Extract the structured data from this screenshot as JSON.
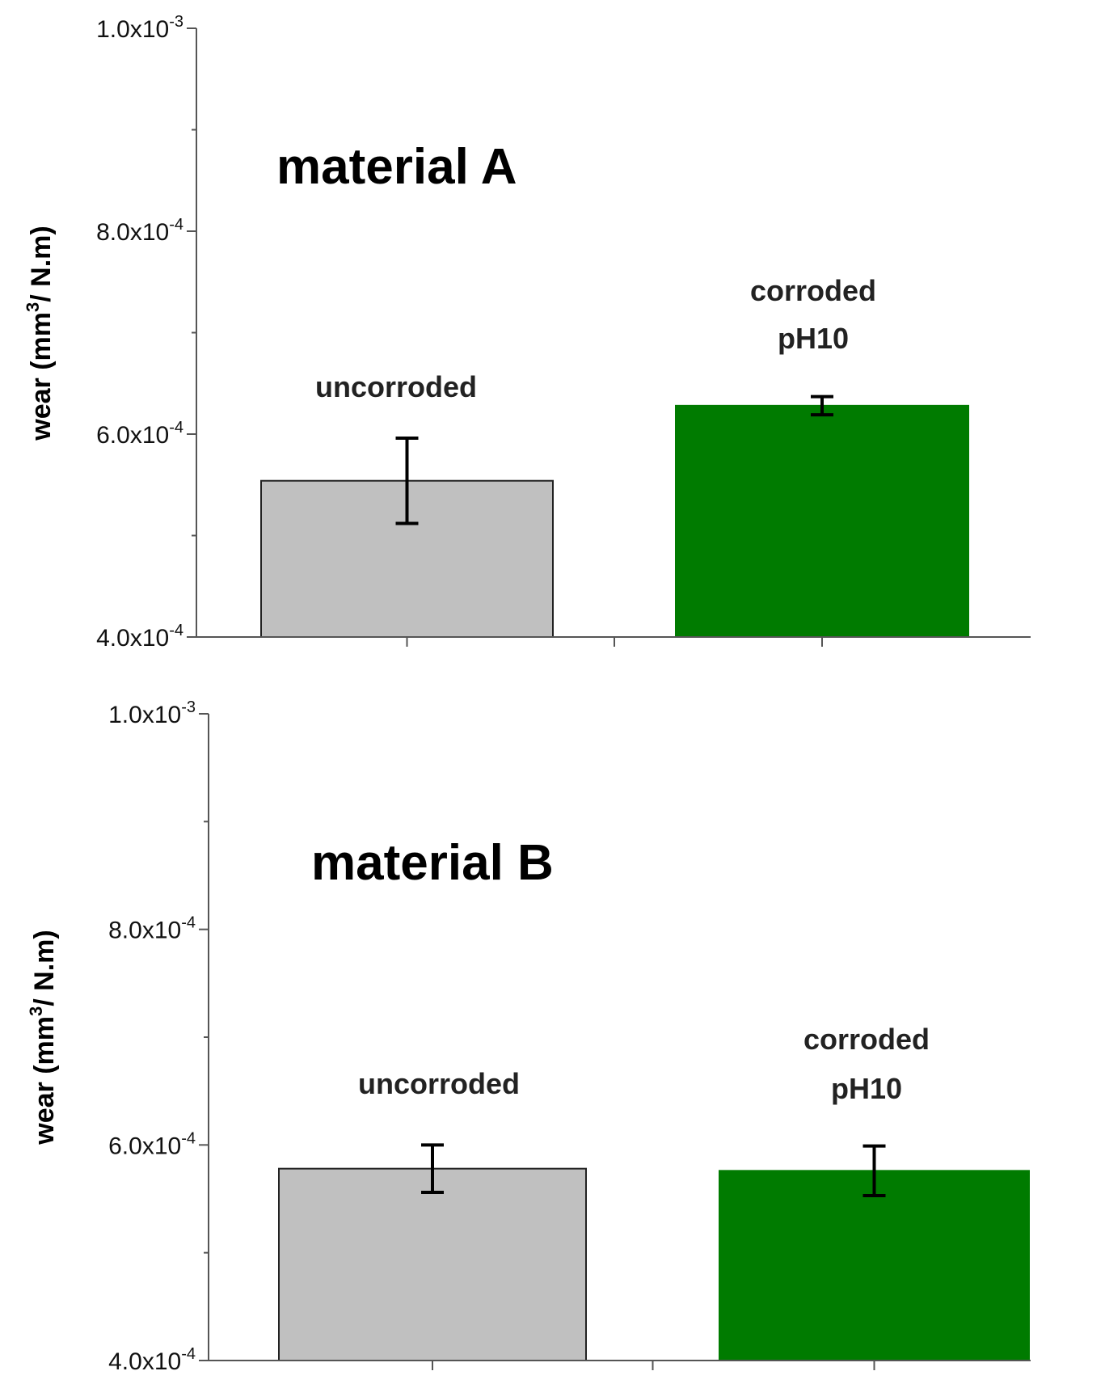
{
  "chart_data": [
    {
      "type": "bar",
      "title": "material A",
      "ylabel": "wear (mm3/ N.m)",
      "ylabel_parts": {
        "pre": "wear (mm",
        "sup": "3",
        "post": "/ N.m)"
      },
      "ylim": [
        0.0004,
        0.001
      ],
      "yticks": [
        {
          "value": 0.001,
          "base": "1.0x10",
          "exp": "-3"
        },
        {
          "value": 0.0008,
          "base": "8.0x10",
          "exp": "-4"
        },
        {
          "value": 0.0006,
          "base": "6.0x10",
          "exp": "-4"
        },
        {
          "value": 0.0004,
          "base": "4.0x10",
          "exp": "-4"
        }
      ],
      "categories": [
        [
          "uncorroded"
        ],
        [
          "corroded",
          "pH10"
        ]
      ],
      "values": [
        0.000554,
        0.000628
      ],
      "errors": [
        4.2e-05,
        9e-06
      ],
      "colors": [
        "#c0c0c0",
        "#007b00"
      ],
      "grid": false
    },
    {
      "type": "bar",
      "title": "material B",
      "ylabel": "wear (mm3/ N.m)",
      "ylabel_parts": {
        "pre": "wear (mm",
        "sup": "3",
        "post": "/ N.m)"
      },
      "ylim": [
        0.0004,
        0.001
      ],
      "yticks": [
        {
          "value": 0.001,
          "base": "1.0x10",
          "exp": "-3"
        },
        {
          "value": 0.0008,
          "base": "8.0x10",
          "exp": "-4"
        },
        {
          "value": 0.0006,
          "base": "6.0x10",
          "exp": "-4"
        },
        {
          "value": 0.0004,
          "base": "4.0x10",
          "exp": "-4"
        }
      ],
      "categories": [
        [
          "uncorroded"
        ],
        [
          "corroded",
          "pH10"
        ]
      ],
      "values": [
        0.000578,
        0.000576
      ],
      "errors": [
        2.2e-05,
        2.3e-05
      ],
      "colors": [
        "#c0c0c0",
        "#007b00"
      ],
      "grid": false
    }
  ]
}
